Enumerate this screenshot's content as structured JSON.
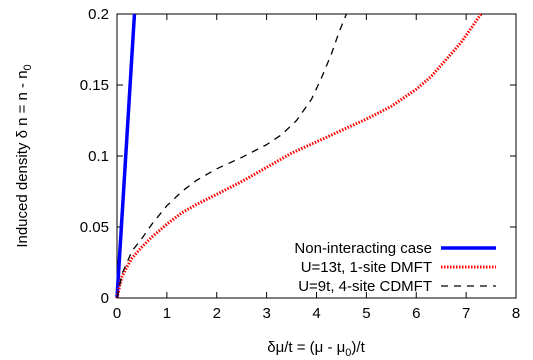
{
  "chart_data": {
    "type": "line",
    "title": "",
    "xlabel": "δμ/t = (μ - μ₀)/t",
    "xlabel_parts": {
      "main": "δμ/t = (μ - μ",
      "sub": "0",
      "tail": ")/t"
    },
    "ylabel": "Induced density δ n = n - n₀",
    "ylabel_parts": {
      "main": "Induced density δ n = n - n",
      "sub": "0"
    },
    "xlim": [
      0,
      8
    ],
    "ylim": [
      0,
      0.2
    ],
    "x_ticks": [
      0,
      1,
      2,
      3,
      4,
      5,
      6,
      7,
      8
    ],
    "x_tick_labels": [
      "0",
      "1",
      "2",
      "3",
      "4",
      "5",
      "6",
      "7",
      "8"
    ],
    "y_ticks": [
      0,
      0.05,
      0.1,
      0.15,
      0.2
    ],
    "y_tick_labels": [
      "0",
      "0.05",
      "0.1",
      "0.15",
      "0.2"
    ],
    "grid": false,
    "legend_position": "bottom-right",
    "series": [
      {
        "name": "Non-interacting case",
        "color": "#0000ff",
        "style": "solid-thick",
        "x": [
          0,
          0.35
        ],
        "y": [
          0,
          0.2
        ]
      },
      {
        "name": "U=13t, 1-site DMFT",
        "color": "#ff0000",
        "style": "dotted",
        "x": [
          0,
          0.05,
          0.1,
          0.2,
          0.3,
          0.5,
          0.7,
          1.0,
          1.3,
          1.6,
          2.0,
          2.5,
          3.0,
          3.5,
          4.0,
          4.5,
          5.0,
          5.5,
          6.0,
          6.3,
          6.6,
          6.9,
          7.1,
          7.3
        ],
        "y": [
          0,
          0.008,
          0.015,
          0.022,
          0.028,
          0.036,
          0.043,
          0.052,
          0.06,
          0.066,
          0.073,
          0.082,
          0.092,
          0.102,
          0.11,
          0.118,
          0.126,
          0.135,
          0.147,
          0.156,
          0.168,
          0.18,
          0.19,
          0.2
        ]
      },
      {
        "name": "U=9t, 4-site CDMFT",
        "color": "#000000",
        "style": "dashed",
        "x": [
          0,
          0.05,
          0.1,
          0.2,
          0.3,
          0.5,
          0.7,
          1.0,
          1.3,
          1.6,
          2.0,
          2.5,
          3.0,
          3.3,
          3.6,
          3.9,
          4.1,
          4.3,
          4.45,
          4.6
        ],
        "y": [
          0,
          0.008,
          0.017,
          0.025,
          0.033,
          0.042,
          0.052,
          0.065,
          0.075,
          0.083,
          0.091,
          0.099,
          0.108,
          0.115,
          0.125,
          0.14,
          0.155,
          0.172,
          0.187,
          0.2
        ]
      }
    ]
  }
}
